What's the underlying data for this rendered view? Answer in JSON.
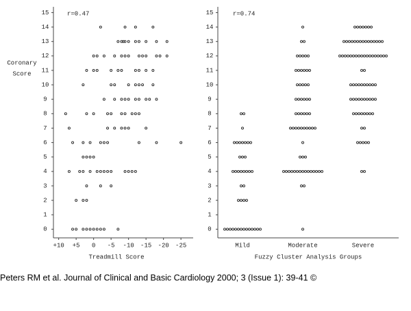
{
  "chart_data": [
    {
      "type": "scatter",
      "annotation": "r=0.47",
      "ylabel": [
        "Coronary",
        "Score"
      ],
      "xlabel": "Treadmill Score",
      "xlim": [
        11.5,
        -28.5
      ],
      "ylim": [
        -0.6,
        15.4
      ],
      "xticks": [
        {
          "value": 10,
          "label": "+10"
        },
        {
          "value": 5,
          "label": "+5"
        },
        0,
        -5,
        -10,
        -15,
        -20,
        -25
      ],
      "yticks": [
        0,
        1,
        2,
        3,
        4,
        5,
        6,
        7,
        8,
        9,
        10,
        11,
        12,
        13,
        14,
        15
      ],
      "color": "#222222",
      "x": [
        -2,
        -9,
        -12,
        -17,
        -7,
        -8,
        -8.5,
        -9,
        -10,
        -12,
        -13,
        -15,
        -18,
        -21,
        0,
        -1,
        -3,
        -6,
        -8,
        -9,
        -10,
        -13,
        -14,
        -15,
        -18,
        -19,
        -21,
        2,
        0,
        -1,
        -5,
        -7,
        -8,
        -12,
        -13,
        -15,
        -17,
        3,
        -5,
        -6,
        -10,
        -12,
        -13,
        -14,
        -17,
        -3,
        -6,
        -8,
        -9,
        -10,
        -12,
        -13,
        -15,
        -16,
        -18,
        8,
        2,
        0,
        -4,
        -5,
        -8,
        -9,
        -11,
        -12,
        -13,
        7,
        -4,
        -6,
        -8,
        -9,
        -10,
        -15,
        6,
        3,
        1,
        -2,
        -3,
        -4,
        -13,
        -18,
        -25,
        3,
        2,
        1,
        0,
        7,
        4,
        3,
        1,
        -1,
        -2,
        -3,
        -4,
        -5,
        -9,
        -10,
        -11,
        -12,
        2,
        -2,
        -5,
        5,
        3,
        2,
        6,
        5,
        3,
        2,
        1,
        0,
        -1,
        -2,
        -3,
        -7
      ],
      "y": [
        14,
        14,
        14,
        14,
        13,
        13,
        13,
        13,
        13,
        13,
        13,
        13,
        13,
        13,
        12,
        12,
        12,
        12,
        12,
        12,
        12,
        12,
        12,
        12,
        12,
        12,
        12,
        11,
        11,
        11,
        11,
        11,
        11,
        11,
        11,
        11,
        11,
        10,
        10,
        10,
        10,
        10,
        10,
        10,
        10,
        9,
        9,
        9,
        9,
        9,
        9,
        9,
        9,
        9,
        9,
        8,
        8,
        8,
        8,
        8,
        8,
        8,
        8,
        8,
        8,
        7,
        7,
        7,
        7,
        7,
        7,
        7,
        6,
        6,
        6,
        6,
        6,
        6,
        6,
        6,
        6,
        5,
        5,
        5,
        5,
        4,
        4,
        4,
        4,
        4,
        4,
        4,
        4,
        4,
        4,
        4,
        4,
        4,
        3,
        3,
        3,
        2,
        2,
        2,
        0,
        0,
        0,
        0,
        0,
        0,
        0,
        0,
        0,
        0
      ]
    },
    {
      "type": "dotstrip",
      "annotation": "r=0.74",
      "xlabel": "Fuzzy Cluster Analysis Groups",
      "ylim": [
        -0.6,
        15.4
      ],
      "yticks": [
        0,
        1,
        2,
        3,
        4,
        5,
        6,
        7,
        8,
        9,
        10,
        11,
        12,
        13,
        14,
        15
      ],
      "color": "#222222",
      "categories": [
        "Mild",
        "Moderate",
        "Severe"
      ],
      "scores": [
        0,
        1,
        2,
        3,
        4,
        5,
        6,
        7,
        8,
        9,
        10,
        11,
        12,
        13,
        14,
        15
      ],
      "counts": [
        [
          14,
          0,
          4,
          2,
          8,
          3,
          7,
          1,
          2,
          0,
          0,
          0,
          0,
          0,
          0,
          0
        ],
        [
          1,
          0,
          0,
          2,
          15,
          3,
          1,
          10,
          6,
          6,
          5,
          6,
          5,
          2,
          1,
          0
        ],
        [
          0,
          0,
          0,
          0,
          2,
          0,
          5,
          2,
          8,
          10,
          10,
          2,
          18,
          15,
          7,
          0
        ]
      ]
    }
  ],
  "caption": "Peters RM et al. Journal of Clinical and Basic Cardiology 2000; 3 (Issue 1): 39-41 ©"
}
